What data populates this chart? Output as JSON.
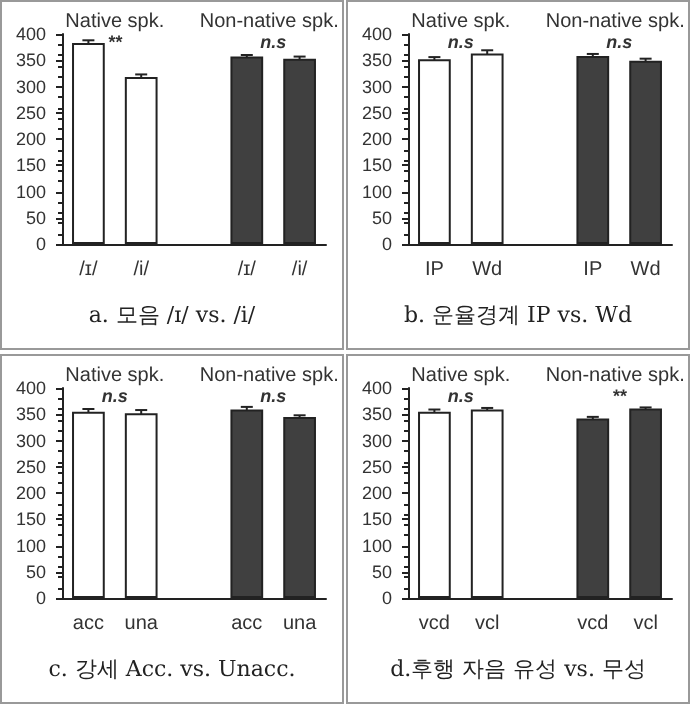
{
  "chart_data": [
    {
      "type": "bar",
      "title": "a. 모음 /ɪ/ vs. /i/",
      "categories": [
        "/ɪ/",
        "/i/",
        null,
        "/ɪ/",
        "/i/"
      ],
      "values": [
        383,
        318,
        null,
        357,
        353
      ],
      "errors": [
        5,
        5,
        null,
        3,
        4
      ],
      "colors": [
        "#ffffff",
        "#ffffff",
        null,
        "#404040",
        "#404040"
      ],
      "ylim": [
        0,
        400
      ],
      "yticks": [
        0,
        50,
        100,
        150,
        200,
        250,
        300,
        350,
        400
      ],
      "grid": false,
      "annotations": [
        "Native spk.",
        "Non-native spk.",
        "**",
        "n.s"
      ]
    },
    {
      "type": "bar",
      "title": "b. 운율경계 IP vs. Wd",
      "categories": [
        "IP",
        "Wd",
        null,
        "IP",
        "Wd"
      ],
      "values": [
        352,
        363,
        null,
        358,
        349
      ],
      "errors": [
        4,
        6,
        null,
        4,
        4
      ],
      "colors": [
        "#ffffff",
        "#ffffff",
        null,
        "#404040",
        "#404040"
      ],
      "ylim": [
        0,
        400
      ],
      "yticks": [
        0,
        50,
        100,
        150,
        200,
        250,
        300,
        350,
        400
      ],
      "grid": false,
      "annotations": [
        "Native spk.",
        "Non-native spk.",
        "n.s",
        "n.s"
      ]
    },
    {
      "type": "bar",
      "title": "c. 강세 Acc. vs. Unacc.",
      "categories": [
        "acc",
        "una",
        null,
        "acc",
        "una"
      ],
      "values": [
        355,
        352,
        null,
        359,
        345
      ],
      "errors": [
        5,
        6,
        null,
        5,
        3
      ],
      "colors": [
        "#ffffff",
        "#ffffff",
        null,
        "#404040",
        "#404040"
      ],
      "ylim": [
        0,
        400
      ],
      "yticks": [
        0,
        50,
        100,
        150,
        200,
        250,
        300,
        350,
        400
      ],
      "grid": false,
      "annotations": [
        "Native spk.",
        "Non-native spk.",
        "n.s",
        "n.s"
      ]
    },
    {
      "type": "bar",
      "title": "d.후행 자음 유성 vs. 무성",
      "categories": [
        "vcd",
        "vcl",
        null,
        "vcd",
        "vcl"
      ],
      "values": [
        355,
        359,
        null,
        342,
        361
      ],
      "errors": [
        4,
        3,
        null,
        3,
        2
      ],
      "colors": [
        "#ffffff",
        "#ffffff",
        null,
        "#404040",
        "#404040"
      ],
      "ylim": [
        0,
        400
      ],
      "yticks": [
        0,
        50,
        100,
        150,
        200,
        250,
        300,
        350,
        400
      ],
      "grid": false,
      "annotations": [
        "Native spk.",
        "Non-native spk.",
        "n.s",
        "**"
      ]
    }
  ]
}
